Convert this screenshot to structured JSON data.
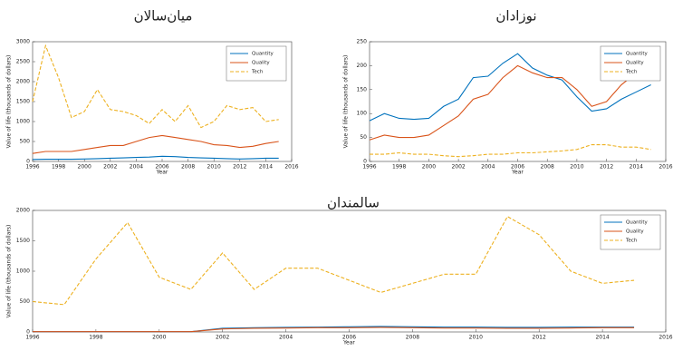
{
  "chart_data": [
    {
      "type": "line",
      "title": "میان‌سالان",
      "xlabel": "Year",
      "ylabel": "Value of life (thousands of dollars)",
      "x": [
        1996,
        1997,
        1998,
        1999,
        2000,
        2001,
        2002,
        2003,
        2004,
        2005,
        2006,
        2007,
        2008,
        2009,
        2010,
        2011,
        2012,
        2013,
        2014,
        2015
      ],
      "series": [
        {
          "name": "Quantity",
          "color": "#0072bd",
          "style": "solid",
          "values": [
            50,
            55,
            55,
            55,
            60,
            70,
            80,
            90,
            100,
            110,
            130,
            120,
            100,
            90,
            80,
            70,
            60,
            70,
            80,
            80
          ]
        },
        {
          "name": "Quality",
          "color": "#d95319",
          "style": "solid",
          "values": [
            200,
            250,
            250,
            250,
            300,
            350,
            400,
            400,
            500,
            600,
            650,
            600,
            550,
            500,
            420,
            400,
            350,
            380,
            450,
            500
          ]
        },
        {
          "name": "Tech",
          "color": "#edb120",
          "style": "dashed",
          "values": [
            1500,
            2900,
            2100,
            1100,
            1250,
            1800,
            1300,
            1250,
            1150,
            950,
            1300,
            1000,
            1400,
            850,
            1000,
            1400,
            1300,
            1350,
            1000,
            1050
          ]
        }
      ],
      "xlim": [
        1996,
        2016
      ],
      "xticks": [
        1996,
        1998,
        2000,
        2002,
        2004,
        2006,
        2008,
        2010,
        2012,
        2014,
        2016
      ],
      "ylim": [
        0,
        3000
      ],
      "yticks": [
        0,
        500,
        1000,
        1500,
        2000,
        2500,
        3000
      ],
      "legend": "upper-right"
    },
    {
      "type": "line",
      "title": "نوزادان",
      "xlabel": "Year",
      "ylabel": "Value of life (thousands of dollars)",
      "x": [
        1996,
        1997,
        1998,
        1999,
        2000,
        2001,
        2002,
        2003,
        2004,
        2005,
        2006,
        2007,
        2008,
        2009,
        2010,
        2011,
        2012,
        2013,
        2014,
        2015
      ],
      "series": [
        {
          "name": "Quantity",
          "color": "#0072bd",
          "style": "solid",
          "values": [
            85,
            100,
            90,
            88,
            90,
            115,
            130,
            175,
            178,
            205,
            225,
            195,
            180,
            170,
            135,
            105,
            110,
            130,
            145,
            160
          ]
        },
        {
          "name": "Quality",
          "color": "#d95319",
          "style": "solid",
          "values": [
            45,
            55,
            50,
            50,
            55,
            75,
            95,
            130,
            140,
            175,
            200,
            185,
            175,
            175,
            150,
            115,
            125,
            160,
            185,
            205
          ]
        },
        {
          "name": "Tech",
          "color": "#edb120",
          "style": "dashed",
          "values": [
            15,
            15,
            18,
            15,
            15,
            12,
            10,
            12,
            15,
            15,
            18,
            18,
            20,
            22,
            25,
            35,
            35,
            30,
            30,
            25
          ]
        }
      ],
      "xlim": [
        1996,
        2016
      ],
      "xticks": [
        1996,
        1998,
        2000,
        2002,
        2004,
        2006,
        2008,
        2010,
        2012,
        2014,
        2016
      ],
      "ylim": [
        0,
        250
      ],
      "yticks": [
        0,
        50,
        100,
        150,
        200,
        250
      ],
      "legend": "upper-right"
    },
    {
      "type": "line",
      "title": "سالمندان",
      "xlabel": "Year",
      "ylabel": "Value of life (thousands of dollars)",
      "x": [
        1996,
        1997,
        1998,
        1999,
        2000,
        2001,
        2002,
        2003,
        2004,
        2005,
        2006,
        2007,
        2008,
        2009,
        2010,
        2011,
        2012,
        2013,
        2014,
        2015
      ],
      "series": [
        {
          "name": "Quantity",
          "color": "#0072bd",
          "style": "solid",
          "values": [
            5,
            5,
            5,
            5,
            5,
            5,
            60,
            70,
            75,
            80,
            85,
            90,
            85,
            80,
            80,
            75,
            75,
            80,
            80,
            80
          ]
        },
        {
          "name": "Quality",
          "color": "#d95319",
          "style": "solid",
          "values": [
            5,
            5,
            5,
            5,
            5,
            5,
            50,
            60,
            65,
            70,
            70,
            75,
            70,
            65,
            65,
            60,
            60,
            65,
            70,
            70
          ]
        },
        {
          "name": "Tech",
          "color": "#edb120",
          "style": "dashed",
          "values": [
            500,
            450,
            1200,
            1800,
            900,
            700,
            1300,
            700,
            1050,
            1050,
            850,
            650,
            800,
            950,
            950,
            1900,
            1600,
            1000,
            800,
            850
          ]
        }
      ],
      "xlim": [
        1996,
        2016
      ],
      "xticks": [
        1996,
        1998,
        2000,
        2002,
        2004,
        2006,
        2008,
        2010,
        2012,
        2014,
        2016
      ],
      "ylim": [
        0,
        2000
      ],
      "yticks": [
        0,
        500,
        1000,
        1500,
        2000
      ],
      "legend": "upper-right"
    }
  ]
}
